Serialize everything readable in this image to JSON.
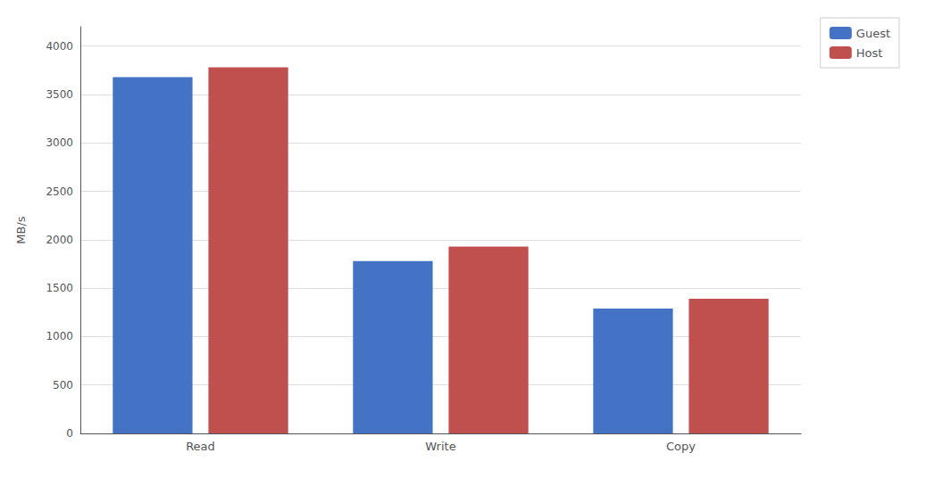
{
  "chart_data": {
    "type": "bar",
    "categories": [
      "Read",
      "Write",
      "Copy"
    ],
    "series": [
      {
        "name": "Guest",
        "color": "#4472C4",
        "values": [
          3680,
          1780,
          1290
        ]
      },
      {
        "name": "Host",
        "color": "#C0504D",
        "values": [
          3780,
          1930,
          1390
        ]
      }
    ],
    "ylabel": "MB/s",
    "ylim": [
      0,
      4200
    ],
    "yticks": [
      0,
      500,
      1000,
      1500,
      2000,
      2500,
      3000,
      3500,
      4000
    ],
    "grid": true,
    "legend": "upper right"
  }
}
